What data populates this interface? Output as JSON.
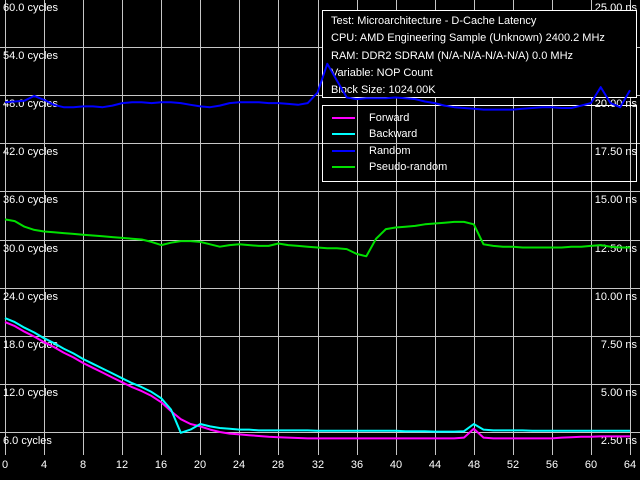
{
  "window_title": "D-Cache Latency benchmark chart",
  "colors": {
    "background": "#000000",
    "grid": "#c6c6c6",
    "text": "#ffffff",
    "box_border": "#ffffff"
  },
  "info_box": {
    "lines": [
      "Test: Microarchitecture - D-Cache Latency",
      "CPU: AMD Engineering Sample (Unknown) 2400.2 MHz",
      "RAM: DDR2 SDRAM (N/A-N/A-N/A-N/A) 0.0 MHz",
      "Variable: NOP Count",
      "Block Size: 1024.00K"
    ]
  },
  "legend": {
    "items": [
      {
        "label": "Forward",
        "color": "#ff00ff"
      },
      {
        "label": "Backward",
        "color": "#00ffff"
      },
      {
        "label": "Random",
        "color": "#0000ff"
      },
      {
        "label": "Pseudo-random",
        "color": "#00e000"
      }
    ]
  },
  "axes": {
    "left_unit": "cycles",
    "right_unit": "ns",
    "left_ticks": [
      {
        "cycles": 60,
        "text": "60.0 cycles"
      },
      {
        "cycles": 54,
        "text": "54.0 cycles"
      },
      {
        "cycles": 48,
        "text": "48.0 cycles"
      },
      {
        "cycles": 42,
        "text": "42.0 cycles"
      },
      {
        "cycles": 36,
        "text": "36.0 cycles"
      },
      {
        "cycles": 30,
        "text": "30.0 cycles"
      },
      {
        "cycles": 24,
        "text": "24.0 cycles"
      },
      {
        "cycles": 18,
        "text": "18.0 cycles"
      },
      {
        "cycles": 12,
        "text": "12.0 cycles"
      },
      {
        "cycles": 6,
        "text": "6.0 cycles"
      }
    ],
    "right_ticks": [
      {
        "cycles": 60,
        "text": "25.00 ns"
      },
      {
        "cycles": 54,
        "text": "22.50 ns"
      },
      {
        "cycles": 48,
        "text": "20.00 ns"
      },
      {
        "cycles": 42,
        "text": "17.50 ns"
      },
      {
        "cycles": 36,
        "text": "15.00 ns"
      },
      {
        "cycles": 30,
        "text": "12.50 ns"
      },
      {
        "cycles": 24,
        "text": "10.00 ns"
      },
      {
        "cycles": 18,
        "text": "7.50 ns"
      },
      {
        "cycles": 12,
        "text": "5.00 ns"
      },
      {
        "cycles": 6,
        "text": "2.50 ns"
      }
    ],
    "x_ticks": [
      {
        "value": 0,
        "text": "0"
      },
      {
        "value": 4,
        "text": "4"
      },
      {
        "value": 8,
        "text": "8"
      },
      {
        "value": 12,
        "text": "12"
      },
      {
        "value": 16,
        "text": "16"
      },
      {
        "value": 20,
        "text": "20"
      },
      {
        "value": 24,
        "text": "24"
      },
      {
        "value": 28,
        "text": "28"
      },
      {
        "value": 32,
        "text": "32"
      },
      {
        "value": 36,
        "text": "36"
      },
      {
        "value": 40,
        "text": "40"
      },
      {
        "value": 44,
        "text": "44"
      },
      {
        "value": 48,
        "text": "48"
      },
      {
        "value": 52,
        "text": "52"
      },
      {
        "value": 56,
        "text": "56"
      },
      {
        "value": 60,
        "text": "60"
      },
      {
        "value": 64,
        "text": "64"
      }
    ]
  },
  "chart_data": {
    "type": "line",
    "title": "Microarchitecture - D-Cache Latency",
    "xlabel": "NOP Count",
    "ylabel_left": "cycles",
    "ylabel_right": "ns",
    "x_range": [
      0,
      64
    ],
    "x_tick_step": 4,
    "y_left_ticks_cycles": [
      6,
      12,
      18,
      24,
      30,
      36,
      42,
      48,
      54,
      60
    ],
    "y_right_ticks_ns": [
      2.5,
      5.0,
      7.5,
      10.0,
      12.5,
      15.0,
      17.5,
      20.0,
      22.5,
      25.0
    ],
    "ns_per_cycle": 0.4167,
    "grid": true,
    "legend_position": "upper-right",
    "x_values": [
      0,
      1,
      2,
      3,
      4,
      5,
      6,
      7,
      8,
      9,
      10,
      11,
      12,
      13,
      14,
      15,
      16,
      17,
      18,
      19,
      20,
      21,
      22,
      23,
      24,
      25,
      26,
      27,
      28,
      29,
      30,
      31,
      32,
      33,
      34,
      35,
      36,
      37,
      38,
      39,
      40,
      41,
      42,
      43,
      44,
      45,
      46,
      47,
      48,
      49,
      50,
      51,
      52,
      53,
      54,
      55,
      56,
      57,
      58,
      59,
      60,
      61,
      62,
      63,
      64
    ],
    "series": [
      {
        "name": "Forward",
        "color": "#ff00ff",
        "unit": "cycles",
        "values": [
          19.7,
          19.2,
          18.5,
          17.9,
          17.2,
          16.6,
          15.9,
          15.3,
          14.6,
          14.0,
          13.4,
          12.8,
          12.2,
          11.6,
          11.1,
          10.5,
          9.7,
          8.6,
          7.6,
          7.0,
          6.7,
          6.3,
          6.0,
          5.8,
          5.7,
          5.6,
          5.5,
          5.4,
          5.35,
          5.3,
          5.25,
          5.2,
          5.2,
          5.2,
          5.2,
          5.2,
          5.2,
          5.2,
          5.2,
          5.2,
          5.2,
          5.2,
          5.2,
          5.2,
          5.2,
          5.2,
          5.2,
          5.3,
          6.4,
          5.3,
          5.2,
          5.2,
          5.2,
          5.2,
          5.2,
          5.2,
          5.2,
          5.3,
          5.35,
          5.4,
          5.4,
          5.45,
          5.45,
          5.45,
          5.45
        ]
      },
      {
        "name": "Backward",
        "color": "#00ffff",
        "unit": "cycles",
        "values": [
          20.2,
          19.7,
          19.0,
          18.4,
          17.7,
          17.1,
          16.4,
          15.8,
          15.1,
          14.5,
          13.9,
          13.3,
          12.7,
          12.1,
          11.6,
          11.0,
          10.2,
          8.8,
          5.9,
          6.3,
          7.0,
          6.7,
          6.5,
          6.4,
          6.3,
          6.3,
          6.2,
          6.2,
          6.2,
          6.2,
          6.2,
          6.2,
          6.15,
          6.15,
          6.15,
          6.15,
          6.15,
          6.15,
          6.15,
          6.15,
          6.15,
          6.1,
          6.1,
          6.1,
          6.05,
          6.05,
          6.05,
          6.1,
          7.0,
          6.3,
          6.2,
          6.2,
          6.2,
          6.2,
          6.15,
          6.15,
          6.15,
          6.15,
          6.15,
          6.15,
          6.15,
          6.15,
          6.15,
          6.15,
          6.15
        ]
      },
      {
        "name": "Random",
        "color": "#0000ff",
        "unit": "cycles",
        "values": [
          47.1,
          47.2,
          47.3,
          47.9,
          47.4,
          46.8,
          46.5,
          46.5,
          46.6,
          46.6,
          46.5,
          46.7,
          47.0,
          47.1,
          47.1,
          47.0,
          47.1,
          47.1,
          47.0,
          46.8,
          46.6,
          46.5,
          46.7,
          47.0,
          47.1,
          47.1,
          47.1,
          47.0,
          47.0,
          46.9,
          46.8,
          47.0,
          48.3,
          51.9,
          49.8,
          47.7,
          47.5,
          47.6,
          47.6,
          47.6,
          47.7,
          47.6,
          47.5,
          47.2,
          47.0,
          46.7,
          46.5,
          46.4,
          46.3,
          46.2,
          46.2,
          46.2,
          46.2,
          46.3,
          46.4,
          46.5,
          46.5,
          46.4,
          46.4,
          46.7,
          47.0,
          49.0,
          47.0,
          46.5,
          48.6
        ]
      },
      {
        "name": "Pseudo-random",
        "color": "#00e000",
        "unit": "cycles",
        "values": [
          32.5,
          32.3,
          31.6,
          31.2,
          31.0,
          30.9,
          30.8,
          30.7,
          30.6,
          30.5,
          30.4,
          30.3,
          30.2,
          30.1,
          30.0,
          29.7,
          29.3,
          29.6,
          29.8,
          29.8,
          29.7,
          29.4,
          29.1,
          29.3,
          29.4,
          29.3,
          29.2,
          29.2,
          29.5,
          29.3,
          29.2,
          29.1,
          29.0,
          28.9,
          28.9,
          28.8,
          28.2,
          27.9,
          30.1,
          31.3,
          31.5,
          31.6,
          31.7,
          31.9,
          32.0,
          32.1,
          32.2,
          32.2,
          31.9,
          29.4,
          29.2,
          29.1,
          29.1,
          29.0,
          29.0,
          29.0,
          29.0,
          29.0,
          29.1,
          29.1,
          29.2,
          29.3,
          29.1,
          29.0,
          29.0
        ]
      }
    ]
  }
}
